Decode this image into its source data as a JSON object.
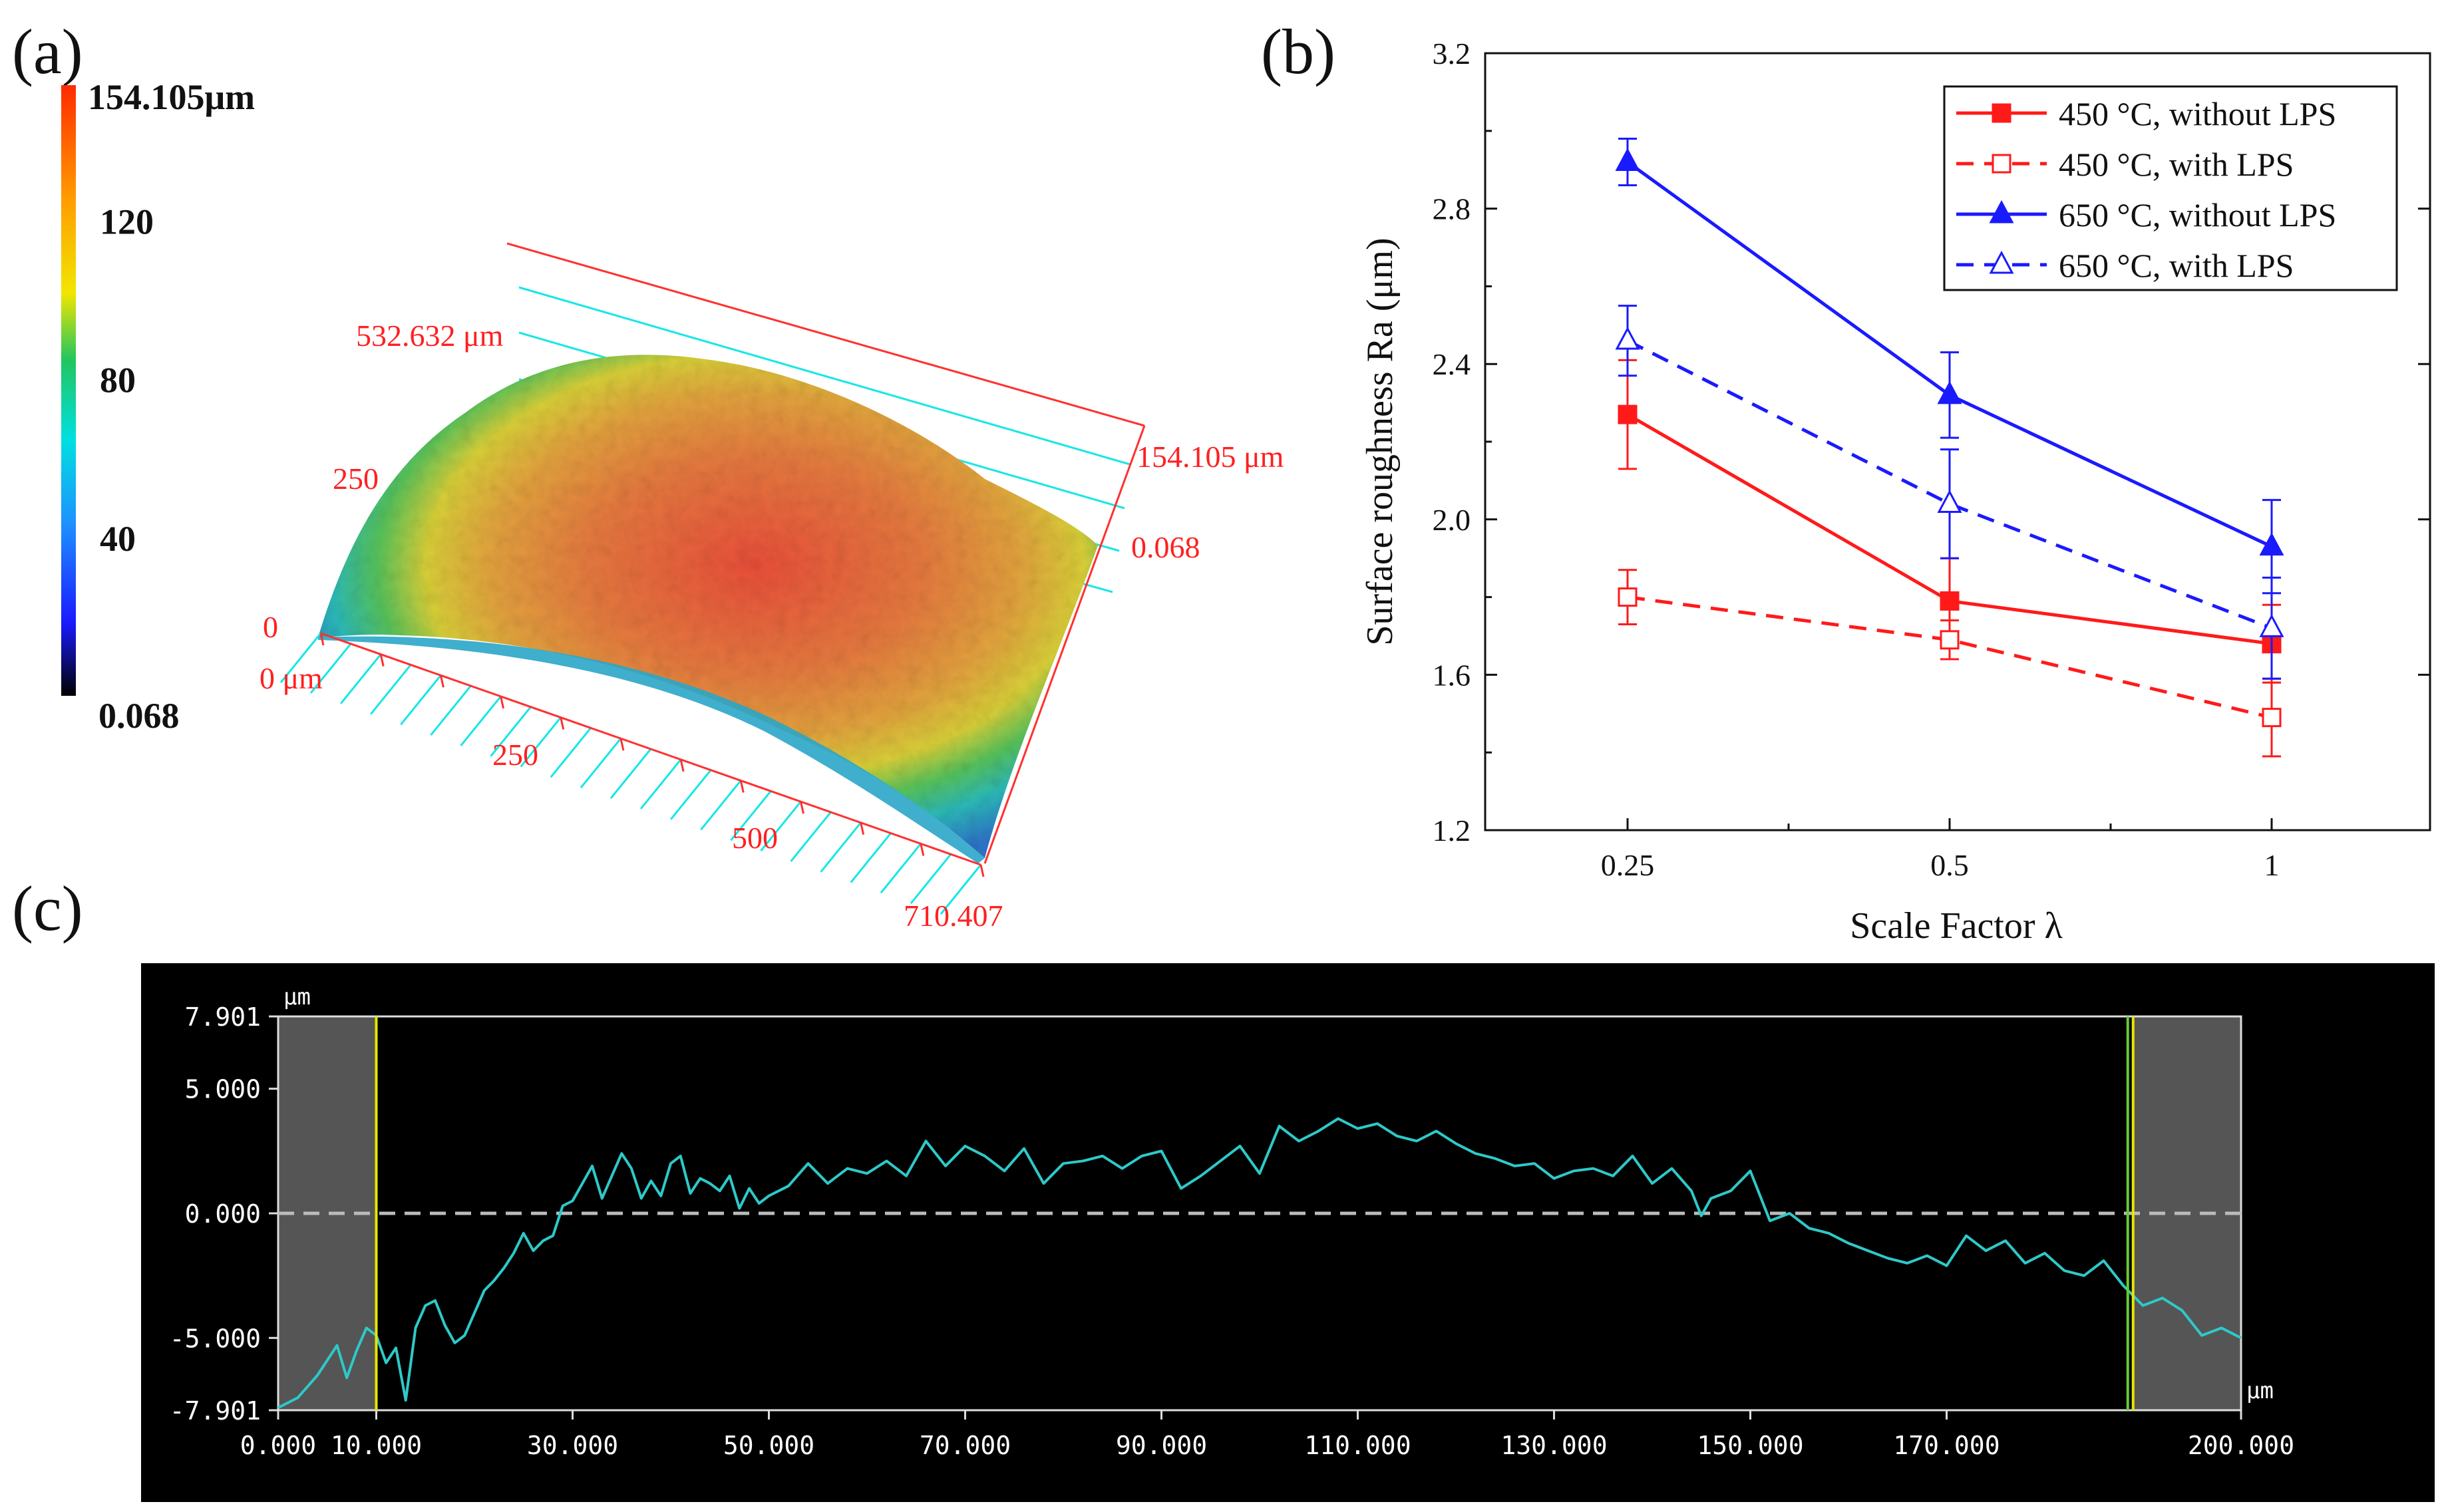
{
  "panels": {
    "a": {
      "label": "(a)",
      "colorbar": {
        "max_label": "154.105μm",
        "ticks": [
          "120",
          "80",
          "40"
        ],
        "tick_values": [
          120,
          80,
          40
        ],
        "min_label": "0.068",
        "range": [
          0.068,
          154.105
        ],
        "colors": [
          "#000000",
          "#1a1aff",
          "#1e90ff",
          "#00e0e0",
          "#22c55e",
          "#f2e600",
          "#ff9900",
          "#ff2a00"
        ]
      },
      "axis_labels": {
        "y_top": "532.632 μm",
        "y_mid": "250",
        "y_zero": "0",
        "x_zero": "0 μm",
        "x_250": "250",
        "x_500": "500",
        "x_end": "710.407",
        "z_top": "154.105 μm",
        "z_bottom": "0.068"
      },
      "label_color": "#ff2020",
      "grid_color": "#19e6e6"
    },
    "b": {
      "label": "(b)",
      "colors": {
        "red": "#ff1a1a",
        "blue": "#1a1aff"
      }
    },
    "c": {
      "label": "(c)",
      "unit_y": "μm",
      "unit_x": "μm",
      "colors": {
        "trace": "#2ec9c9",
        "cursor": "#e6e600",
        "cursor2": "#66cc33",
        "shade": "#555555"
      }
    }
  },
  "chart_data": [
    {
      "id": "b",
      "type": "line",
      "title": "",
      "xlabel": "Scale Factor λ",
      "ylabel": "Surface roughness Ra (μm)",
      "categories": [
        "0.25",
        "0.5",
        "1"
      ],
      "ylim": [
        1.2,
        3.2
      ],
      "yticks": [
        "1.2",
        "1.6",
        "2.0",
        "2.4",
        "2.8",
        "3.2"
      ],
      "ytick_values": [
        1.2,
        1.6,
        2.0,
        2.4,
        2.8,
        3.2
      ],
      "legend_position": "top-right",
      "series": [
        {
          "name": "450 °C, without LPS",
          "values": [
            2.27,
            1.79,
            1.68
          ],
          "errors": [
            0.14,
            0.11,
            0.1
          ],
          "color": "#ff1a1a",
          "dash": false,
          "marker": "square-filled"
        },
        {
          "name": "450 °C, with LPS",
          "values": [
            1.8,
            1.69,
            1.49
          ],
          "errors": [
            0.07,
            0.05,
            0.1
          ],
          "color": "#ff1a1a",
          "dash": true,
          "marker": "square-open"
        },
        {
          "name": "650 °C, without LPS",
          "values": [
            2.92,
            2.32,
            1.93
          ],
          "errors": [
            0.06,
            0.11,
            0.12
          ],
          "color": "#1a1aff",
          "dash": false,
          "marker": "triangle-filled"
        },
        {
          "name": "650 °C, with LPS",
          "values": [
            2.46,
            2.04,
            1.72
          ],
          "errors": [
            0.09,
            0.14,
            0.13
          ],
          "color": "#1a1aff",
          "dash": true,
          "marker": "triangle-open"
        }
      ]
    },
    {
      "id": "c",
      "type": "line",
      "title": "",
      "xlabel": "μm",
      "ylabel": "μm",
      "xlim": [
        0,
        200
      ],
      "ylim": [
        -7.901,
        7.901
      ],
      "xticks": [
        "0.000",
        "10.000",
        "30.000",
        "50.000",
        "70.000",
        "90.000",
        "110.000",
        "130.000",
        "150.000",
        "170.000",
        "200.000"
      ],
      "xtick_values": [
        0,
        10,
        30,
        50,
        70,
        90,
        110,
        130,
        150,
        170,
        200
      ],
      "yticks": [
        "7.901",
        "5.000",
        "0.000",
        "-5.000",
        "-7.901"
      ],
      "ytick_values": [
        7.901,
        5.0,
        0.0,
        -5.0,
        -7.901
      ],
      "cursors": [
        10,
        189
      ],
      "zero_line": 0,
      "series": [
        {
          "name": "profile",
          "x": [
            0,
            2,
            4,
            6,
            7,
            8,
            9,
            10,
            11,
            12,
            13,
            14,
            15,
            16,
            17,
            18,
            19,
            20,
            21,
            22,
            23,
            24,
            25,
            26,
            27,
            28,
            29,
            30,
            31,
            32,
            33,
            34,
            35,
            36,
            37,
            38,
            39,
            40,
            41,
            42,
            43,
            44,
            45,
            46,
            47,
            48,
            49,
            50,
            52,
            54,
            56,
            58,
            60,
            62,
            64,
            66,
            68,
            70,
            72,
            74,
            76,
            78,
            80,
            82,
            84,
            86,
            88,
            90,
            92,
            94,
            96,
            98,
            100,
            102,
            104,
            106,
            108,
            110,
            112,
            114,
            116,
            118,
            120,
            122,
            124,
            126,
            128,
            130,
            132,
            134,
            136,
            138,
            140,
            142,
            144,
            145,
            146,
            148,
            150,
            152,
            154,
            156,
            158,
            160,
            162,
            164,
            166,
            168,
            170,
            172,
            174,
            176,
            178,
            180,
            182,
            184,
            186,
            188,
            189,
            190,
            192,
            194,
            196,
            198,
            200
          ],
          "y": [
            -7.8,
            -7.4,
            -6.5,
            -5.3,
            -6.6,
            -5.5,
            -4.6,
            -4.9,
            -6.0,
            -5.4,
            -7.5,
            -4.6,
            -3.7,
            -3.5,
            -4.5,
            -5.2,
            -4.9,
            -4.0,
            -3.1,
            -2.7,
            -2.2,
            -1.6,
            -0.8,
            -1.5,
            -1.1,
            -0.9,
            0.3,
            0.5,
            1.2,
            1.9,
            0.6,
            1.5,
            2.4,
            1.8,
            0.6,
            1.3,
            0.7,
            2.0,
            2.3,
            0.8,
            1.4,
            1.2,
            0.9,
            1.5,
            0.2,
            1.0,
            0.4,
            0.7,
            1.1,
            2.0,
            1.2,
            1.8,
            1.6,
            2.1,
            1.5,
            2.9,
            1.9,
            2.7,
            2.3,
            1.7,
            2.6,
            1.2,
            2.0,
            2.1,
            2.3,
            1.8,
            2.3,
            2.5,
            1.0,
            1.5,
            2.1,
            2.7,
            1.6,
            3.5,
            2.9,
            3.3,
            3.8,
            3.4,
            3.6,
            3.1,
            2.9,
            3.3,
            2.8,
            2.4,
            2.2,
            1.9,
            2.0,
            1.4,
            1.7,
            1.8,
            1.5,
            2.3,
            1.2,
            1.8,
            0.9,
            -0.1,
            0.6,
            0.9,
            1.7,
            -0.3,
            0.0,
            -0.6,
            -0.8,
            -1.2,
            -1.5,
            -1.8,
            -2.0,
            -1.7,
            -2.1,
            -0.9,
            -1.5,
            -1.1,
            -2.0,
            -1.6,
            -2.3,
            -2.5,
            -1.9,
            -2.9,
            -3.3,
            -3.7,
            -3.4,
            -3.9,
            -4.9,
            -4.6,
            -5.0
          ]
        }
      ]
    }
  ]
}
